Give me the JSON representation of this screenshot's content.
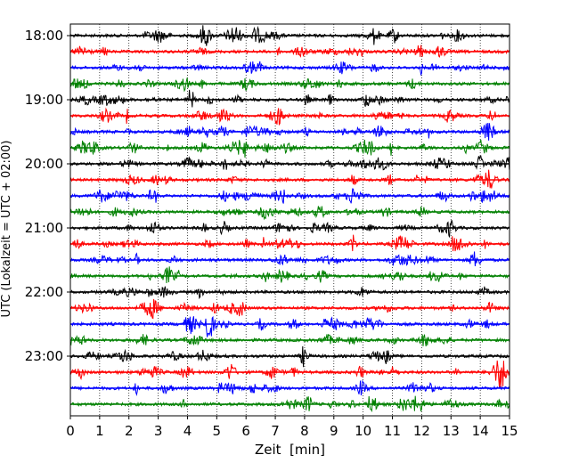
{
  "chart_data": {
    "type": "line",
    "title": "",
    "xlabel": "Zeit  [min]",
    "ylabel": "UTC (Lokalzeit = UTC + 02:00)",
    "xlim": [
      0,
      15
    ],
    "x_ticks": [
      0,
      1,
      2,
      3,
      4,
      5,
      6,
      7,
      8,
      9,
      10,
      11,
      12,
      13,
      14,
      15
    ],
    "y_tick_labels": [
      "18:00",
      "19:00",
      "20:00",
      "21:00",
      "22:00",
      "23:00"
    ],
    "grid": {
      "x": true,
      "y": false,
      "style": "dotted"
    },
    "trace_colors": [
      "#000000",
      "#ff0000",
      "#0000ff",
      "#008000"
    ],
    "row_start_times": [
      "18:00",
      "18:15",
      "18:30",
      "18:45",
      "19:00",
      "19:15",
      "19:30",
      "19:45",
      "20:00",
      "20:15",
      "20:30",
      "20:45",
      "21:00",
      "21:15",
      "21:30",
      "21:45",
      "22:00",
      "22:15",
      "22:30",
      "22:45",
      "23:00",
      "23:15",
      "23:30",
      "23:45"
    ]
  }
}
